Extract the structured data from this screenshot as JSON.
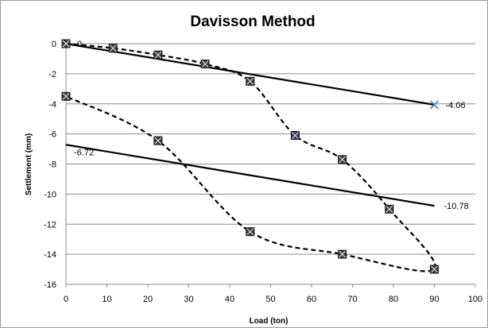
{
  "chart_data": {
    "type": "scatter",
    "title": "Davisson Method",
    "xlabel": "Load (ton)",
    "ylabel": "Settlement (mm)",
    "xlim": [
      0,
      100
    ],
    "ylim": [
      -16,
      0
    ],
    "x_ticks": [
      "0",
      "10",
      "20",
      "30",
      "40",
      "50",
      "60",
      "70",
      "80",
      "90",
      "100"
    ],
    "y_ticks": [
      "0",
      "-2",
      "-4",
      "-6",
      "-8",
      "-10",
      "-12",
      "-14",
      "-16"
    ],
    "grid": true,
    "legend": false,
    "series": [
      {
        "style": "dashed-with-markers",
        "color": "#000000",
        "marker_color": "#3a3a4a",
        "points": [
          {
            "x": 0,
            "y": 0
          },
          {
            "x": 11.5,
            "y": -0.3
          },
          {
            "x": 22.5,
            "y": -0.75
          },
          {
            "x": 34,
            "y": -1.35
          },
          {
            "x": 45,
            "y": -2.5
          },
          {
            "x": 56,
            "y": -6.1
          },
          {
            "x": 67.5,
            "y": -7.7
          },
          {
            "x": 79,
            "y": -11
          },
          {
            "x": 90,
            "y": -15
          },
          {
            "x": 67.5,
            "y": -14
          },
          {
            "x": 45,
            "y": -12.5
          },
          {
            "x": 22.5,
            "y": -6.45
          },
          {
            "x": 0,
            "y": -3.5
          }
        ]
      },
      {
        "style": "solid",
        "color": "#000000",
        "points": [
          {
            "x": 0,
            "y": 0
          },
          {
            "x": 90,
            "y": -4.06
          }
        ]
      },
      {
        "style": "solid",
        "color": "#000000",
        "points": [
          {
            "x": 0,
            "y": -6.72
          },
          {
            "x": 90,
            "y": -10.78
          }
        ]
      }
    ],
    "intersection_marker": {
      "x": 90,
      "y": -4.06,
      "color": "#4f81bd"
    },
    "annotations": [
      {
        "text": "0",
        "x": 0,
        "y": 0
      },
      {
        "text": "-4.06",
        "x": 90,
        "y": -4.06
      },
      {
        "text": "-6.72",
        "x": 0,
        "y": -6.72
      },
      {
        "text": "-10.78",
        "x": 90,
        "y": -10.78
      }
    ]
  }
}
